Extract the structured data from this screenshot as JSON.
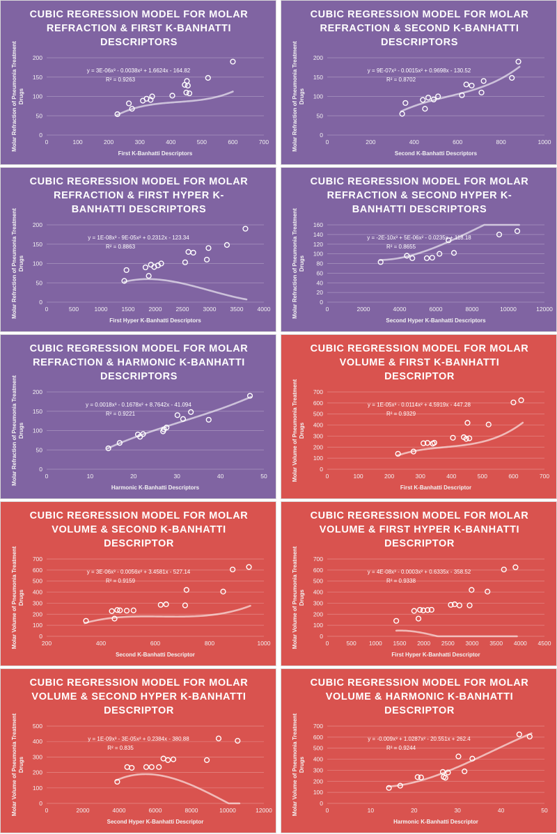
{
  "chart_data": [
    {
      "type": "scatter",
      "title_lines": [
        "CUBIC REGRESSION MODEL FOR MOLAR",
        "REFRACTION & FIRST K-BANHATTI",
        "DESCRIPTORS"
      ],
      "xlabel": "First K-Banhatti Descriptors",
      "ylabel_lines": [
        "Molar Refraction of Pneumonia Treatment",
        "Drugs"
      ],
      "equation": "y = 3E-06x³ - 0.0038x² + 1.6624x - 164.82",
      "r2": "R² = 0.9263",
      "xlim": [
        0,
        700
      ],
      "ylim": [
        0,
        200
      ],
      "xticks": [
        0,
        100,
        200,
        300,
        400,
        500,
        600,
        700
      ],
      "yticks": [
        0,
        50,
        100,
        150,
        200
      ],
      "coef": [
        3e-06,
        -0.0038,
        1.6624,
        -164.82
      ],
      "fit_range": [
        225,
        600
      ],
      "points": [
        [
          228,
          54
        ],
        [
          265,
          82
        ],
        [
          275,
          68
        ],
        [
          310,
          89
        ],
        [
          322,
          94
        ],
        [
          335,
          91
        ],
        [
          340,
          100
        ],
        [
          405,
          102
        ],
        [
          445,
          130
        ],
        [
          450,
          110
        ],
        [
          452,
          140
        ],
        [
          455,
          128
        ],
        [
          460,
          108
        ],
        [
          520,
          148
        ],
        [
          600,
          190
        ]
      ]
    },
    {
      "type": "scatter",
      "title_lines": [
        "CUBIC REGRESSION MODEL FOR MOLAR",
        "REFRACTION & SECOND K-BANHATTI",
        "DESCRIPTORS"
      ],
      "xlabel": "Second K-Banhatti Descriptors",
      "ylabel_lines": [
        "Molar Refraction of Pneumonia Treatment",
        "Drugs"
      ],
      "equation": "y = 9E-07x³ - 0.0015x² + 0.9698x - 130.52",
      "r2": "R² = 0.8702",
      "xlim": [
        0,
        1000
      ],
      "ylim": [
        0,
        200
      ],
      "xticks": [
        0,
        200,
        400,
        600,
        800,
        1000
      ],
      "yticks": [
        0,
        50,
        100,
        150,
        200
      ],
      "coef": [
        9e-07,
        -0.0015,
        0.9698,
        -130.52
      ],
      "fit_range": [
        340,
        885
      ],
      "points": [
        [
          345,
          55
        ],
        [
          360,
          83
        ],
        [
          440,
          91
        ],
        [
          450,
          68
        ],
        [
          465,
          97
        ],
        [
          490,
          92
        ],
        [
          510,
          100
        ],
        [
          620,
          103
        ],
        [
          640,
          131
        ],
        [
          665,
          128
        ],
        [
          710,
          110
        ],
        [
          720,
          140
        ],
        [
          850,
          148
        ],
        [
          880,
          190
        ]
      ]
    },
    {
      "type": "scatter",
      "title_lines": [
        "CUBIC REGRESSION MODEL FOR MOLAR",
        "REFRACTION & FIRST HYPER K-",
        "BANHATTI DESCRIPTORS"
      ],
      "xlabel": "First Hyper K-Banhatti Descriptors",
      "ylabel_lines": [
        "Molar Refraction of Pneumonia Treatment",
        "Drugs"
      ],
      "equation": "y = 1E-08x³ - 9E-05x² + 0.2312x - 123.34",
      "r2": "R² = 0.8863",
      "xlim": [
        0,
        4000
      ],
      "ylim": [
        0,
        200
      ],
      "xticks": [
        0,
        500,
        1000,
        1500,
        2000,
        2500,
        3000,
        3500,
        4000
      ],
      "yticks": [
        0,
        50,
        100,
        150,
        200
      ],
      "coef": [
        1e-08,
        -9e-05,
        0.2312,
        -123.34
      ],
      "fit_range": [
        1430,
        3680
      ],
      "points": [
        [
          1430,
          55
        ],
        [
          1470,
          83
        ],
        [
          1820,
          90
        ],
        [
          1880,
          68
        ],
        [
          1920,
          97
        ],
        [
          1980,
          91
        ],
        [
          2050,
          95
        ],
        [
          2110,
          100
        ],
        [
          2550,
          103
        ],
        [
          2610,
          130
        ],
        [
          2700,
          128
        ],
        [
          2950,
          110
        ],
        [
          2980,
          140
        ],
        [
          3320,
          148
        ],
        [
          3660,
          190
        ]
      ]
    },
    {
      "type": "scatter",
      "title_lines": [
        "CUBIC REGRESSION MODEL FOR MOLAR",
        "REFRACTION & SECOND HYPER K-",
        "BANHATTI DESCRIPTORS"
      ],
      "xlabel": "Second Hyper K-Banhatti Descriptors",
      "ylabel_lines": [
        "Molar Refraction of Pneumonia Treatment",
        "Drugs"
      ],
      "equation": "y = -2E-10x³ + 5E-06x² - 0.0235x + 118.18",
      "r2": "R² = 0.8655",
      "xlim": [
        0,
        12000
      ],
      "ylim": [
        0,
        160
      ],
      "xticks": [
        0,
        2000,
        4000,
        6000,
        8000,
        10000,
        12000
      ],
      "yticks": [
        0,
        20,
        40,
        60,
        80,
        100,
        120,
        140,
        160
      ],
      "coef": [
        -2e-10,
        5e-06,
        -0.0235,
        118.18
      ],
      "fit_range": [
        2900,
        10600
      ],
      "points": [
        [
          2950,
          83
        ],
        [
          4400,
          96
        ],
        [
          4700,
          91
        ],
        [
          5500,
          91
        ],
        [
          5800,
          92
        ],
        [
          6200,
          100
        ],
        [
          6700,
          128
        ],
        [
          7000,
          102
        ],
        [
          9500,
          140
        ],
        [
          10500,
          147
        ]
      ]
    },
    {
      "type": "scatter",
      "title_lines": [
        "CUBIC REGRESSION MODEL FOR MOLAR",
        "REFRACTION & HARMONIC K-BANHATTI",
        "DESCRIPTORS"
      ],
      "xlabel": "Harmonic K-Banhatti Descriptors",
      "ylabel_lines": [
        "Molar Refraction of Pneumonia Treatment",
        "Drugs"
      ],
      "equation": "y = 0.0018x³ - 0.1678x² + 8.7642x - 41.094",
      "r2": "R² = 0.9221",
      "xlim": [
        0,
        50
      ],
      "ylim": [
        0,
        200
      ],
      "xticks": [
        0,
        10,
        20,
        30,
        40,
        50
      ],
      "yticks": [
        0,
        50,
        100,
        150,
        200
      ],
      "coef": [
        0.0018,
        -0.1678,
        8.7642,
        -41.094
      ],
      "fit_range": [
        14,
        47
      ],
      "points": [
        [
          14.2,
          54
        ],
        [
          16.8,
          68
        ],
        [
          21,
          90
        ],
        [
          21.5,
          84
        ],
        [
          22.2,
          91
        ],
        [
          26.8,
          98
        ],
        [
          27,
          103
        ],
        [
          27.6,
          108
        ],
        [
          30.1,
          140
        ],
        [
          31.4,
          130
        ],
        [
          33.2,
          148
        ],
        [
          37.3,
          128
        ],
        [
          46.8,
          190
        ]
      ]
    },
    {
      "type": "scatter",
      "title_lines": [
        "CUBIC REGRESSION MODEL FOR MOLAR",
        "VOLUME & FIRST K-BANHATTI",
        "DESCRIPTOR"
      ],
      "xlabel": "First K-Banhatti Descriptor",
      "ylabel_lines": [
        "Molar Volume of Pneumonia Treatment",
        "Drugs"
      ],
      "equation": "y = 1E-05x³ - 0.0114x² + 4.5919x - 447.28",
      "r2": "R² = 0.9329",
      "xlim": [
        0,
        700
      ],
      "ylim": [
        0,
        700
      ],
      "xticks": [
        0,
        100,
        200,
        300,
        400,
        500,
        600,
        700
      ],
      "yticks": [
        0,
        100,
        200,
        300,
        400,
        500,
        600,
        700
      ],
      "coef": [
        1e-05,
        -0.0114,
        4.5919,
        -447.28
      ],
      "fit_range": [
        225,
        630
      ],
      "points": [
        [
          228,
          140
        ],
        [
          278,
          160
        ],
        [
          310,
          235
        ],
        [
          323,
          238
        ],
        [
          340,
          232
        ],
        [
          345,
          240
        ],
        [
          405,
          285
        ],
        [
          440,
          290
        ],
        [
          448,
          275
        ],
        [
          452,
          420
        ],
        [
          458,
          280
        ],
        [
          520,
          405
        ],
        [
          600,
          605
        ],
        [
          625,
          625
        ]
      ]
    },
    {
      "type": "scatter",
      "title_lines": [
        "CUBIC REGRESSION MODEL FOR MOLAR",
        "VOLUME & SECOND K-BANHATTI",
        "DESCRIPTOR"
      ],
      "xlabel": "Second K-Banhatti Descriptor",
      "ylabel_lines": [
        "Molar Volume of Pneumonia Treatment",
        "Drugs"
      ],
      "equation": "y = 3E-06x³ - 0.0056x² + 3.4581x - 527.14",
      "r2": "R² = 0.9159",
      "xlim": [
        200,
        1000
      ],
      "ylim": [
        0,
        700
      ],
      "xticks": [
        200,
        400,
        600,
        800,
        1000
      ],
      "yticks": [
        0,
        100,
        200,
        300,
        400,
        500,
        600,
        700
      ],
      "coef": [
        3e-06,
        -0.0056,
        3.4581,
        -527.14
      ],
      "fit_range": [
        340,
        950
      ],
      "points": [
        [
          345,
          140
        ],
        [
          440,
          228
        ],
        [
          450,
          160
        ],
        [
          460,
          238
        ],
        [
          470,
          235
        ],
        [
          495,
          232
        ],
        [
          520,
          235
        ],
        [
          620,
          285
        ],
        [
          640,
          290
        ],
        [
          710,
          280
        ],
        [
          715,
          420
        ],
        [
          850,
          405
        ],
        [
          885,
          605
        ],
        [
          945,
          628
        ]
      ]
    },
    {
      "type": "scatter",
      "title_lines": [
        "CUBIC REGRESSION MODEL FOR MOLAR",
        "VOLUME & FIRST HYPER K-BANHATTI",
        "DESCRIPTOR"
      ],
      "xlabel": "First Hyper K-Banhatti Descriptor",
      "ylabel_lines": [
        "Molar Volume of Pneumonia Treatment",
        "Drugs"
      ],
      "equation": "y = 4E-08x³ - 0.0003x² + 0.6335x - 358.52",
      "r2": "R² = 0.9338",
      "xlim": [
        0,
        4500
      ],
      "ylim": [
        0,
        700
      ],
      "xticks": [
        0,
        500,
        1000,
        1500,
        2000,
        2500,
        3000,
        3500,
        4000,
        4500
      ],
      "yticks": [
        0,
        100,
        200,
        300,
        400,
        500,
        600,
        700
      ],
      "coef": [
        4e-08,
        -0.0003,
        0.6335,
        -358.52
      ],
      "fit_range": [
        1430,
        3930
      ],
      "points": [
        [
          1430,
          140
        ],
        [
          1800,
          230
        ],
        [
          1890,
          160
        ],
        [
          1920,
          240
        ],
        [
          1990,
          235
        ],
        [
          2080,
          238
        ],
        [
          2160,
          240
        ],
        [
          2560,
          285
        ],
        [
          2640,
          290
        ],
        [
          2740,
          280
        ],
        [
          2950,
          280
        ],
        [
          2990,
          420
        ],
        [
          3320,
          405
        ],
        [
          3660,
          605
        ],
        [
          3900,
          625
        ]
      ]
    },
    {
      "type": "scatter",
      "title_lines": [
        "CUBIC REGRESSION MODEL FOR MOLAR",
        "VOLUME & SECOND HYPER K-BANHATTI",
        "DESCRIPTOR"
      ],
      "xlabel": "Second Hyper K-Banhatti Descriptor",
      "ylabel_lines": [
        "Molar Volume of Pneumonia Treatment",
        "Drugs"
      ],
      "equation": "y = 1E-09x³ - 3E-05x² + 0.2384x - 380.88",
      "r2": "R² = 0.835",
      "xlim": [
        0,
        12000
      ],
      "ylim": [
        0,
        500
      ],
      "xticks": [
        0,
        2000,
        4000,
        6000,
        8000,
        10000,
        12000
      ],
      "yticks": [
        0,
        100,
        200,
        300,
        400,
        500
      ],
      "coef": [
        1e-09,
        -3e-05,
        0.2384,
        -380.88
      ],
      "fit_range": [
        3850,
        10650
      ],
      "points": [
        [
          3900,
          140
        ],
        [
          4450,
          235
        ],
        [
          4700,
          230
        ],
        [
          5500,
          235
        ],
        [
          5800,
          235
        ],
        [
          6200,
          235
        ],
        [
          6450,
          290
        ],
        [
          6700,
          280
        ],
        [
          7000,
          285
        ],
        [
          8850,
          280
        ],
        [
          9500,
          420
        ],
        [
          10550,
          405
        ]
      ]
    },
    {
      "type": "scatter",
      "title_lines": [
        "CUBIC REGRESSION MODEL FOR MOLAR",
        "VOLUME & HARMONIC K-BANHATTI",
        "DESCRIPTOR"
      ],
      "xlabel": "Harmonic K-Banhatti Descriptor",
      "ylabel_lines": [
        "Molar Volume of Pneumonia Treatment",
        "Drugs"
      ],
      "equation": "y = -0.009x³ + 1.0287x² - 20.551x + 262.4",
      "r2": "R² = 0.9244",
      "xlim": [
        0,
        50
      ],
      "ylim": [
        0,
        700
      ],
      "xticks": [
        0,
        10,
        20,
        30,
        40,
        50
      ],
      "yticks": [
        0,
        100,
        200,
        300,
        400,
        500,
        600,
        700
      ],
      "coef": [
        -0.009,
        1.0287,
        -20.551,
        262.4
      ],
      "fit_range": [
        14,
        47
      ],
      "points": [
        [
          14.2,
          140
        ],
        [
          16.8,
          160
        ],
        [
          20.8,
          238
        ],
        [
          21.6,
          235
        ],
        [
          26.6,
          285
        ],
        [
          26.8,
          240
        ],
        [
          27.2,
          232
        ],
        [
          27.8,
          280
        ],
        [
          30.2,
          425
        ],
        [
          31.6,
          290
        ],
        [
          33.4,
          405
        ],
        [
          44.2,
          625
        ],
        [
          46.6,
          605
        ]
      ]
    }
  ],
  "colors": {
    "panel_purple": "#8064a2",
    "panel_red": "#d9534f",
    "marks": "#ffffff"
  }
}
